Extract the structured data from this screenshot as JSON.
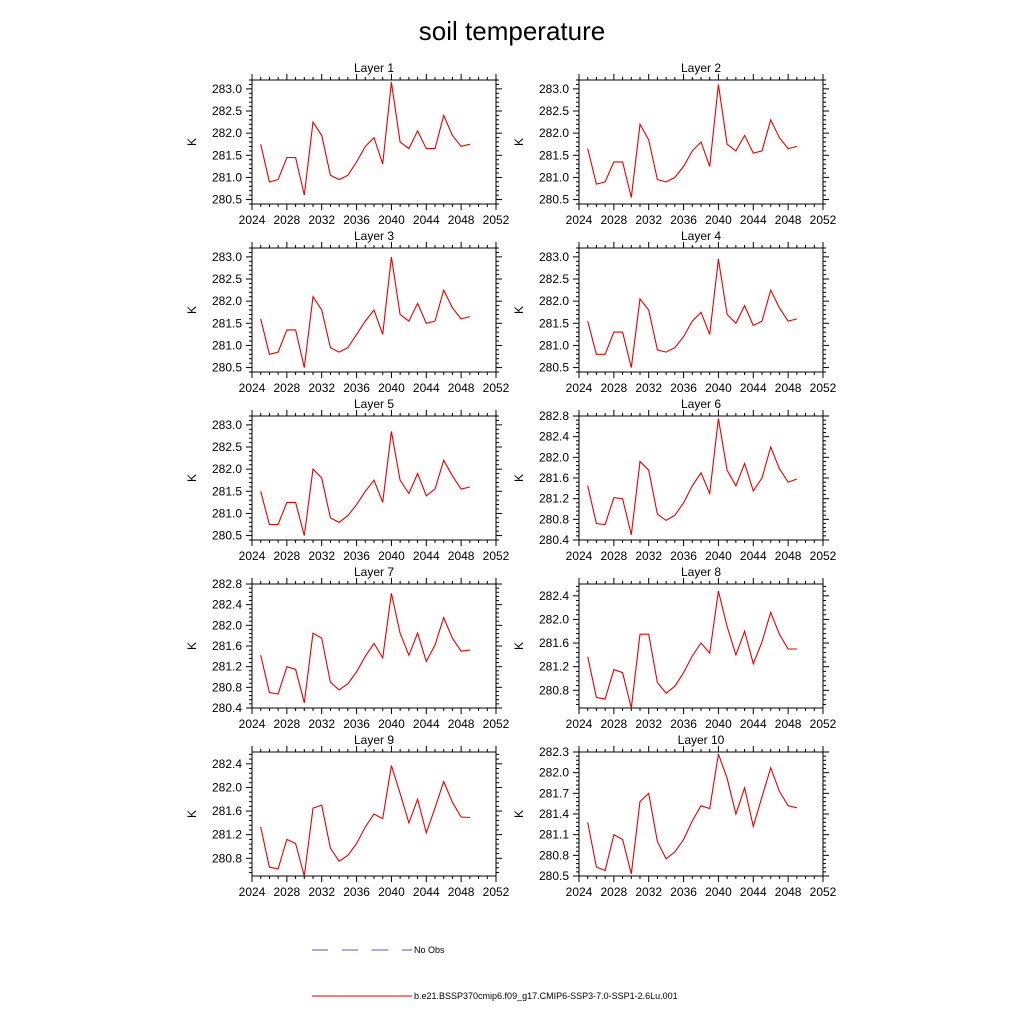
{
  "figure": {
    "title": "soil temperature",
    "legend": {
      "obs_label": "No Obs",
      "obs_color": "#5a5ab4",
      "model_label": "b.e21.BSSP370cmip6.f09_g17.CMIP6-SSP3-7.0-SSP1-2.6Lu.001",
      "model_color": "#e60000"
    }
  },
  "chart_data": [
    {
      "type": "line",
      "title": "Layer 1",
      "ylabel": "K",
      "xlim": [
        2024,
        2052
      ],
      "xticks": [
        "2024",
        "2028",
        "2032",
        "2036",
        "2040",
        "2044",
        "2048",
        "2052"
      ],
      "ylim": [
        280.4,
        283.2
      ],
      "yticks": [
        "280.5",
        "281.0",
        "281.5",
        "282.0",
        "282.5",
        "283.0"
      ],
      "series": [
        {
          "x": [
            2025,
            2026,
            2027,
            2028,
            2029,
            2030,
            2031,
            2032,
            2033,
            2034,
            2035,
            2036,
            2037,
            2038,
            2039,
            2040,
            2041,
            2042,
            2043,
            2044,
            2045,
            2046,
            2047,
            2048,
            2049
          ],
          "values": [
            281.75,
            280.9,
            280.95,
            281.45,
            281.45,
            280.6,
            282.25,
            281.95,
            281.05,
            280.95,
            281.05,
            281.35,
            281.7,
            281.9,
            281.3,
            283.15,
            281.8,
            281.65,
            282.05,
            281.65,
            281.65,
            282.4,
            281.95,
            281.7,
            281.75
          ]
        }
      ]
    },
    {
      "type": "line",
      "title": "Layer 2",
      "ylabel": "K",
      "xlim": [
        2024,
        2052
      ],
      "xticks": [
        "2024",
        "2028",
        "2032",
        "2036",
        "2040",
        "2044",
        "2048",
        "2052"
      ],
      "ylim": [
        280.4,
        283.2
      ],
      "yticks": [
        "280.5",
        "281.0",
        "281.5",
        "282.0",
        "282.5",
        "283.0"
      ],
      "series": [
        {
          "x": [
            2025,
            2026,
            2027,
            2028,
            2029,
            2030,
            2031,
            2032,
            2033,
            2034,
            2035,
            2036,
            2037,
            2038,
            2039,
            2040,
            2041,
            2042,
            2043,
            2044,
            2045,
            2046,
            2047,
            2048,
            2049
          ],
          "values": [
            281.65,
            280.85,
            280.9,
            281.35,
            281.35,
            280.55,
            282.2,
            281.85,
            280.95,
            280.9,
            281.0,
            281.25,
            281.6,
            281.8,
            281.25,
            283.1,
            281.75,
            281.6,
            281.95,
            281.55,
            281.6,
            282.3,
            281.9,
            281.65,
            281.7
          ]
        }
      ]
    },
    {
      "type": "line",
      "title": "Layer 3",
      "ylabel": "K",
      "xlim": [
        2024,
        2052
      ],
      "xticks": [
        "2024",
        "2028",
        "2032",
        "2036",
        "2040",
        "2044",
        "2048",
        "2052"
      ],
      "ylim": [
        280.4,
        283.2
      ],
      "yticks": [
        "280.5",
        "281.0",
        "281.5",
        "282.0",
        "282.5",
        "283.0"
      ],
      "series": [
        {
          "x": [
            2025,
            2026,
            2027,
            2028,
            2029,
            2030,
            2031,
            2032,
            2033,
            2034,
            2035,
            2036,
            2037,
            2038,
            2039,
            2040,
            2041,
            2042,
            2043,
            2044,
            2045,
            2046,
            2047,
            2048,
            2049
          ],
          "values": [
            281.6,
            280.8,
            280.85,
            281.35,
            281.35,
            280.5,
            282.1,
            281.8,
            280.95,
            280.85,
            280.95,
            281.25,
            281.55,
            281.8,
            281.25,
            283.0,
            281.7,
            281.55,
            281.95,
            281.5,
            281.55,
            282.25,
            281.85,
            281.6,
            281.65
          ]
        }
      ]
    },
    {
      "type": "line",
      "title": "Layer 4",
      "ylabel": "K",
      "xlim": [
        2024,
        2052
      ],
      "xticks": [
        "2024",
        "2028",
        "2032",
        "2036",
        "2040",
        "2044",
        "2048",
        "2052"
      ],
      "ylim": [
        280.4,
        283.2
      ],
      "yticks": [
        "280.5",
        "281.0",
        "281.5",
        "282.0",
        "282.5",
        "283.0"
      ],
      "series": [
        {
          "x": [
            2025,
            2026,
            2027,
            2028,
            2029,
            2030,
            2031,
            2032,
            2033,
            2034,
            2035,
            2036,
            2037,
            2038,
            2039,
            2040,
            2041,
            2042,
            2043,
            2044,
            2045,
            2046,
            2047,
            2048,
            2049
          ],
          "values": [
            281.55,
            280.8,
            280.8,
            281.3,
            281.3,
            280.5,
            282.05,
            281.8,
            280.9,
            280.85,
            280.95,
            281.2,
            281.55,
            281.75,
            281.25,
            282.95,
            281.7,
            281.5,
            281.9,
            281.45,
            281.55,
            282.25,
            281.85,
            281.55,
            281.6
          ]
        }
      ]
    },
    {
      "type": "line",
      "title": "Layer 5",
      "ylabel": "K",
      "xlim": [
        2024,
        2052
      ],
      "xticks": [
        "2024",
        "2028",
        "2032",
        "2036",
        "2040",
        "2044",
        "2048",
        "2052"
      ],
      "ylim": [
        280.4,
        283.2
      ],
      "yticks": [
        "280.5",
        "281.0",
        "281.5",
        "282.0",
        "282.5",
        "283.0"
      ],
      "series": [
        {
          "x": [
            2025,
            2026,
            2027,
            2028,
            2029,
            2030,
            2031,
            2032,
            2033,
            2034,
            2035,
            2036,
            2037,
            2038,
            2039,
            2040,
            2041,
            2042,
            2043,
            2044,
            2045,
            2046,
            2047,
            2048,
            2049
          ],
          "values": [
            281.5,
            280.75,
            280.75,
            281.25,
            281.25,
            280.5,
            282.0,
            281.8,
            280.9,
            280.8,
            280.95,
            281.2,
            281.5,
            281.75,
            281.25,
            282.85,
            281.75,
            281.45,
            281.9,
            281.4,
            281.55,
            282.2,
            281.85,
            281.55,
            281.6
          ]
        }
      ]
    },
    {
      "type": "line",
      "title": "Layer 6",
      "ylabel": "K",
      "xlim": [
        2024,
        2052
      ],
      "xticks": [
        "2024",
        "2028",
        "2032",
        "2036",
        "2040",
        "2044",
        "2048",
        "2052"
      ],
      "ylim": [
        280.4,
        282.8
      ],
      "yticks": [
        "280.4",
        "280.8",
        "281.2",
        "281.6",
        "282.0",
        "282.4",
        "282.8"
      ],
      "series": [
        {
          "x": [
            2025,
            2026,
            2027,
            2028,
            2029,
            2030,
            2031,
            2032,
            2033,
            2034,
            2035,
            2036,
            2037,
            2038,
            2039,
            2040,
            2041,
            2042,
            2043,
            2044,
            2045,
            2046,
            2047,
            2048,
            2049
          ],
          "values": [
            281.45,
            280.72,
            280.7,
            281.22,
            281.2,
            280.5,
            281.92,
            281.75,
            280.9,
            280.78,
            280.88,
            281.12,
            281.45,
            281.7,
            281.3,
            282.75,
            281.75,
            281.45,
            281.88,
            281.35,
            281.6,
            282.2,
            281.78,
            281.52,
            281.58
          ]
        }
      ]
    },
    {
      "type": "line",
      "title": "Layer 7",
      "ylabel": "K",
      "xlim": [
        2024,
        2052
      ],
      "xticks": [
        "2024",
        "2028",
        "2032",
        "2036",
        "2040",
        "2044",
        "2048",
        "2052"
      ],
      "ylim": [
        280.4,
        282.8
      ],
      "yticks": [
        "280.4",
        "280.8",
        "281.2",
        "281.6",
        "282.0",
        "282.4",
        "282.8"
      ],
      "series": [
        {
          "x": [
            2025,
            2026,
            2027,
            2028,
            2029,
            2030,
            2031,
            2032,
            2033,
            2034,
            2035,
            2036,
            2037,
            2038,
            2039,
            2040,
            2041,
            2042,
            2043,
            2044,
            2045,
            2046,
            2047,
            2048,
            2049
          ],
          "values": [
            281.42,
            280.7,
            280.67,
            281.2,
            281.15,
            280.5,
            281.85,
            281.75,
            280.9,
            280.75,
            280.87,
            281.1,
            281.4,
            281.65,
            281.37,
            282.62,
            281.85,
            281.42,
            281.85,
            281.3,
            281.62,
            282.15,
            281.75,
            281.5,
            281.52
          ]
        }
      ]
    },
    {
      "type": "line",
      "title": "Layer 8",
      "ylabel": "K",
      "xlim": [
        2024,
        2052
      ],
      "xticks": [
        "2024",
        "2028",
        "2032",
        "2036",
        "2040",
        "2044",
        "2048",
        "2052"
      ],
      "ylim": [
        280.5,
        282.6
      ],
      "yticks": [
        "280.8",
        "281.2",
        "281.6",
        "282.0",
        "282.4"
      ],
      "series": [
        {
          "x": [
            2025,
            2026,
            2027,
            2028,
            2029,
            2030,
            2031,
            2032,
            2033,
            2034,
            2035,
            2036,
            2037,
            2038,
            2039,
            2040,
            2041,
            2042,
            2043,
            2044,
            2045,
            2046,
            2047,
            2048,
            2049
          ],
          "values": [
            281.37,
            280.68,
            280.65,
            281.15,
            281.1,
            280.5,
            281.75,
            281.75,
            280.93,
            280.75,
            280.87,
            281.1,
            281.38,
            281.6,
            281.43,
            282.48,
            281.88,
            281.4,
            281.8,
            281.25,
            281.62,
            282.12,
            281.75,
            281.5,
            281.5
          ]
        }
      ]
    },
    {
      "type": "line",
      "title": "Layer 9",
      "ylabel": "K",
      "xlim": [
        2024,
        2052
      ],
      "xticks": [
        "2024",
        "2028",
        "2032",
        "2036",
        "2040",
        "2044",
        "2048",
        "2052"
      ],
      "ylim": [
        280.5,
        282.6
      ],
      "yticks": [
        "280.8",
        "281.2",
        "281.6",
        "282.0",
        "282.4"
      ],
      "series": [
        {
          "x": [
            2025,
            2026,
            2027,
            2028,
            2029,
            2030,
            2031,
            2032,
            2033,
            2034,
            2035,
            2036,
            2037,
            2038,
            2039,
            2040,
            2041,
            2042,
            2043,
            2044,
            2045,
            2046,
            2047,
            2048,
            2049
          ],
          "values": [
            281.33,
            280.65,
            280.62,
            281.12,
            281.05,
            280.5,
            281.65,
            281.7,
            280.97,
            280.75,
            280.85,
            281.05,
            281.33,
            281.55,
            281.47,
            282.37,
            281.9,
            281.4,
            281.8,
            281.23,
            281.65,
            282.1,
            281.75,
            281.5,
            281.49
          ]
        }
      ]
    },
    {
      "type": "line",
      "title": "Layer 10",
      "ylabel": "K",
      "xlim": [
        2024,
        2052
      ],
      "xticks": [
        "2024",
        "2028",
        "2032",
        "2036",
        "2040",
        "2044",
        "2048",
        "2052"
      ],
      "ylim": [
        280.5,
        282.3
      ],
      "yticks": [
        "280.5",
        "280.8",
        "281.1",
        "281.4",
        "281.7",
        "282.0",
        "282.3"
      ],
      "series": [
        {
          "x": [
            2025,
            2026,
            2027,
            2028,
            2029,
            2030,
            2031,
            2032,
            2033,
            2034,
            2035,
            2036,
            2037,
            2038,
            2039,
            2040,
            2041,
            2042,
            2043,
            2044,
            2045,
            2046,
            2047,
            2048,
            2049
          ],
          "values": [
            281.28,
            280.63,
            280.58,
            281.1,
            281.03,
            280.53,
            281.58,
            281.7,
            281.0,
            280.75,
            280.85,
            281.03,
            281.3,
            281.52,
            281.48,
            282.27,
            281.92,
            281.4,
            281.78,
            281.22,
            281.65,
            282.07,
            281.73,
            281.52,
            281.49
          ]
        }
      ]
    }
  ]
}
